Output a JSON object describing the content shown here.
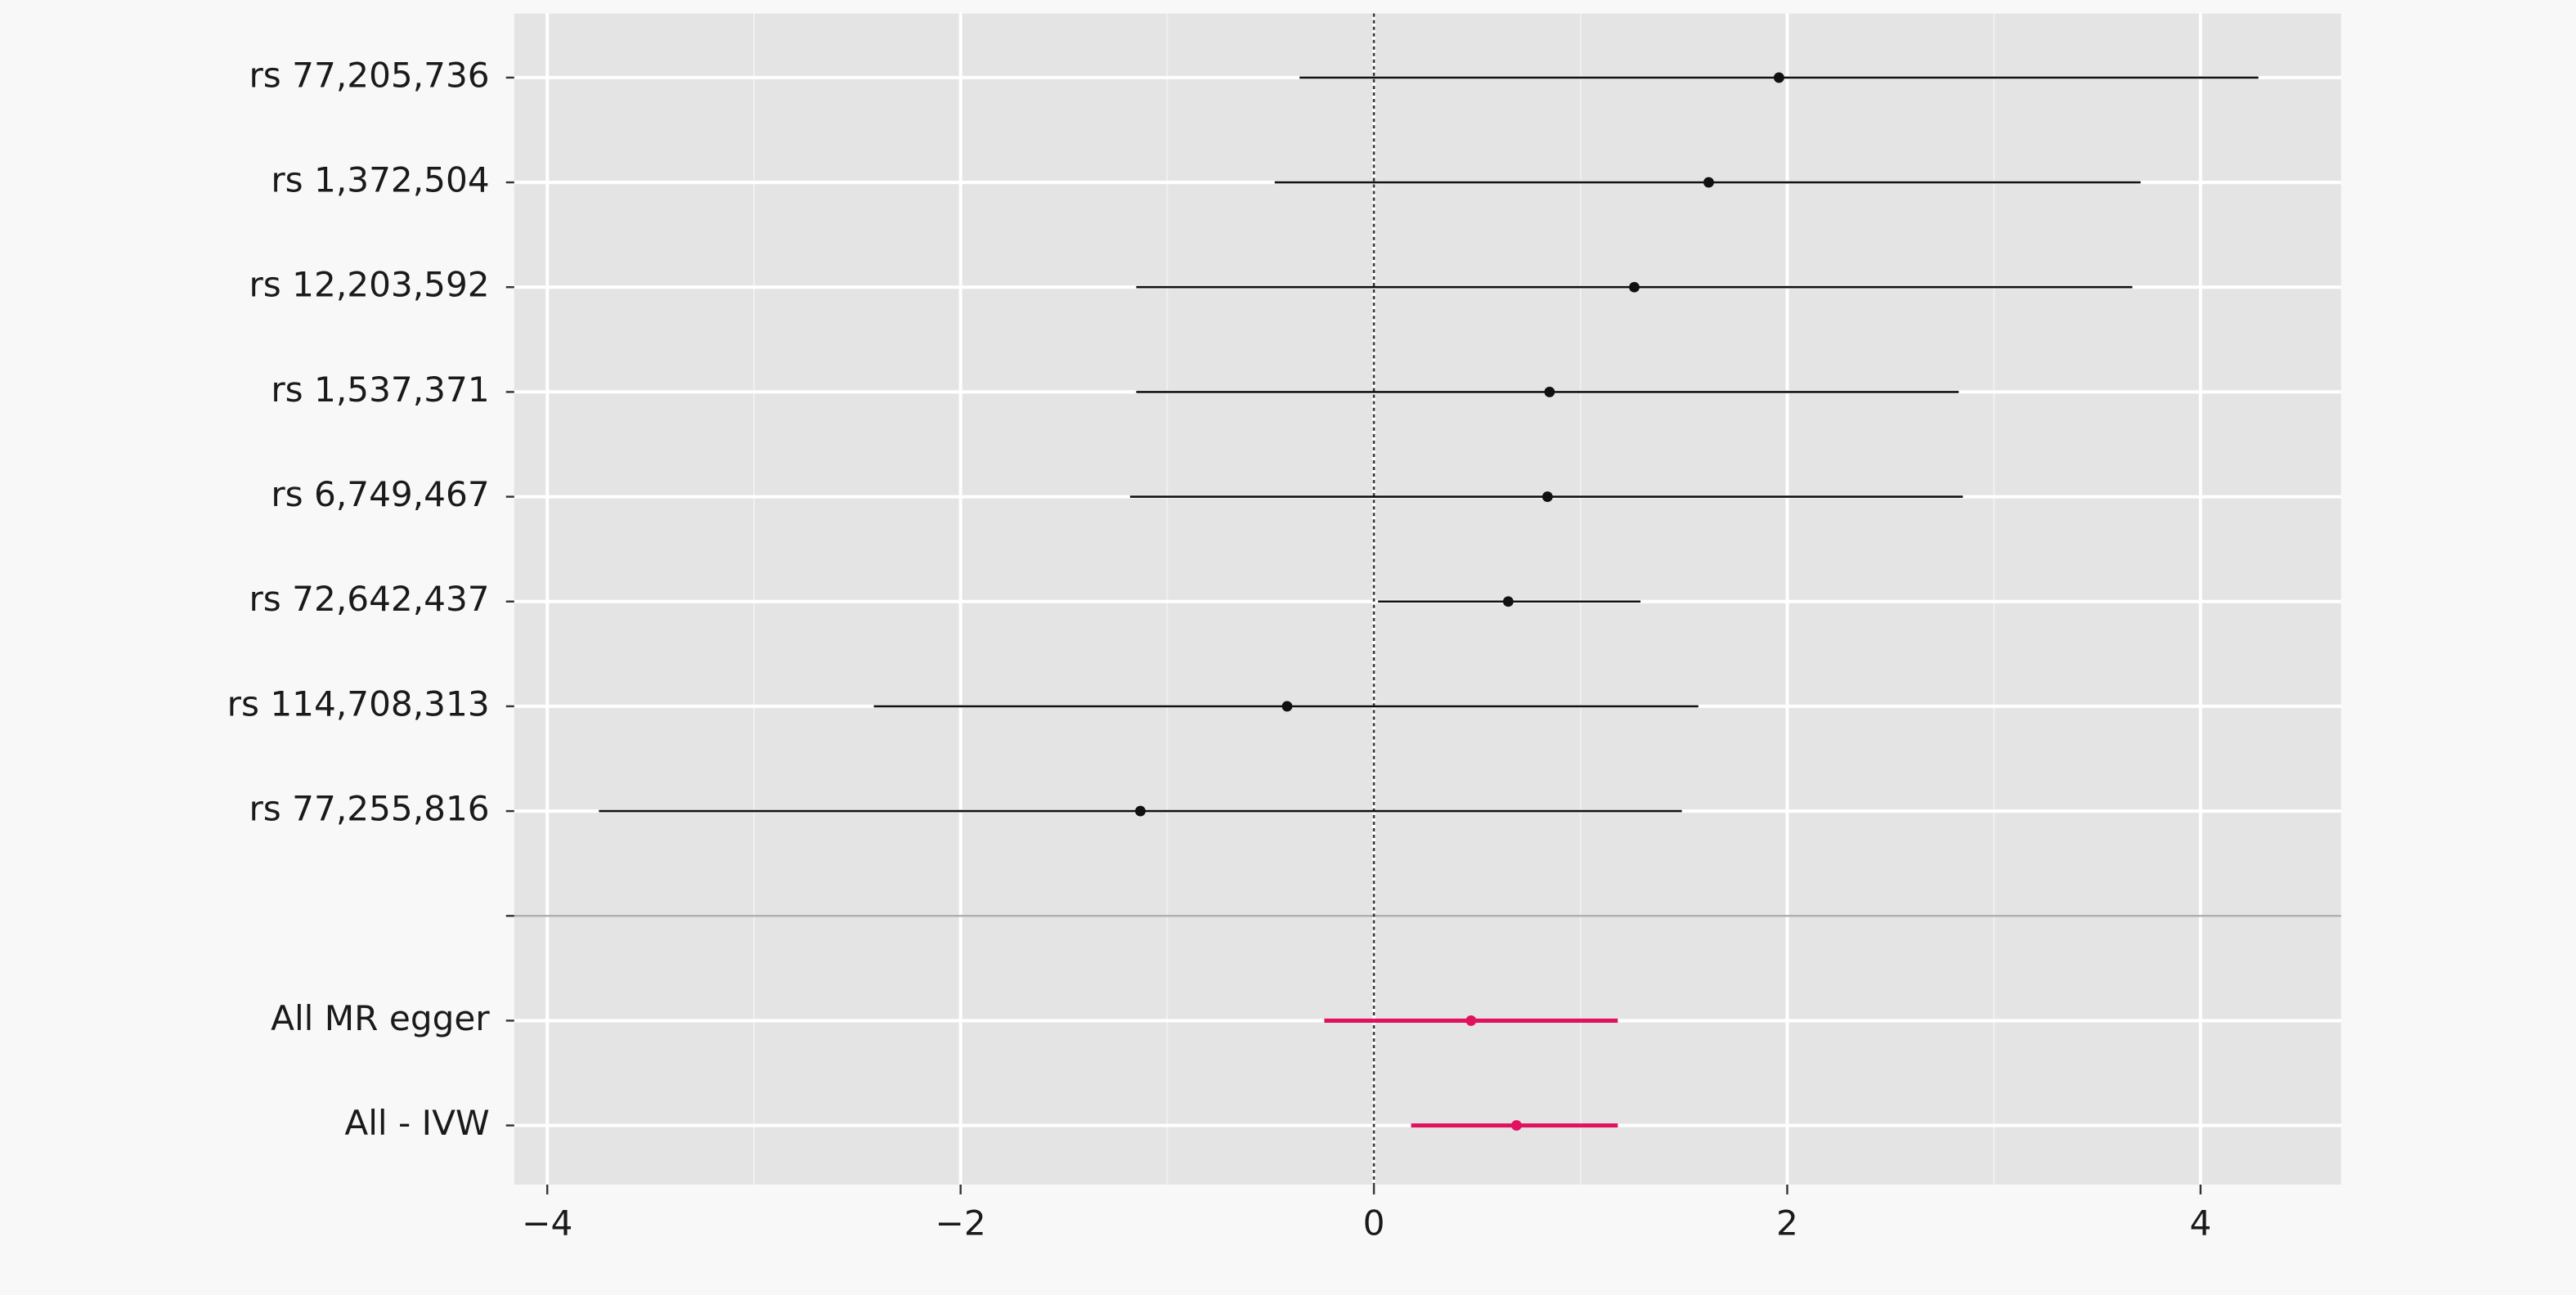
{
  "chart_data": {
    "type": "forest",
    "categories": [
      "rs 77,205,736",
      "rs 1,372,504",
      "rs 12,203,592",
      "rs 1,537,371",
      "rs 6,749,467",
      "rs 72,642,437",
      "rs 114,708,313",
      "rs 77,255,816",
      null,
      "All MR egger",
      "All - IVW"
    ],
    "estimates": [
      1.96,
      1.62,
      1.26,
      0.85,
      0.84,
      0.65,
      -0.42,
      -1.13,
      null,
      0.47,
      0.69
    ],
    "lower": [
      -0.36,
      -0.48,
      -1.15,
      -1.15,
      -1.18,
      0.02,
      -2.42,
      -3.75,
      null,
      -0.24,
      0.18
    ],
    "upper": [
      4.28,
      3.71,
      3.67,
      2.83,
      2.85,
      1.29,
      1.57,
      1.49,
      null,
      1.18,
      1.18
    ],
    "colors": [
      "#111111",
      "#111111",
      "#111111",
      "#111111",
      "#111111",
      "#111111",
      "#111111",
      "#111111",
      null,
      "#e0115f",
      "#e0115f"
    ],
    "xlim": [
      -4.16,
      4.68
    ],
    "xticks": [
      {
        "value": -4,
        "label": "−4"
      },
      {
        "value": -2,
        "label": "−2"
      },
      0,
      2,
      4
    ],
    "minor_xticks": [
      -3,
      -1,
      1,
      3
    ],
    "reference_x": 0,
    "grid": true
  }
}
